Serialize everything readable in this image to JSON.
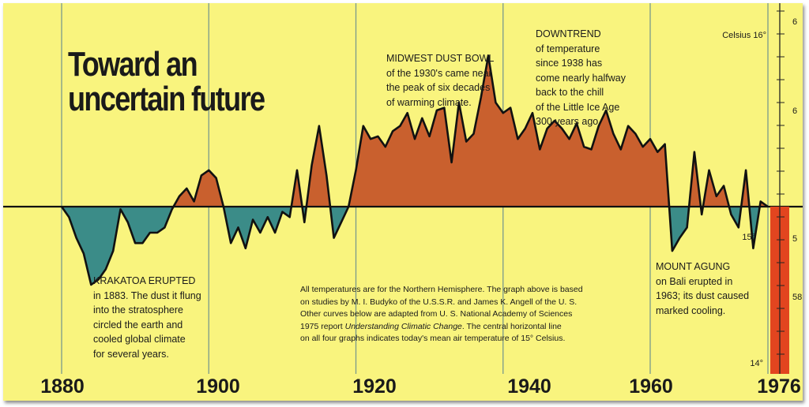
{
  "title": [
    "Toward an",
    "uncertain future"
  ],
  "colors": {
    "background": "#f9f47e",
    "warm_fill": "#c9602e",
    "cool_fill": "#3b8c88",
    "line": "#111111",
    "grid": "#7a9a8c",
    "thermometer": "#e2451f"
  },
  "annotations": {
    "krakatoa": {
      "head": "KRAKATOA ERUPTED",
      "lines": [
        "in 1883. The dust it flung",
        "into the stratosphere",
        "circled the earth and",
        "cooled global climate",
        "for several years."
      ]
    },
    "dustbowl": {
      "head": "MIDWEST DUST BOWL",
      "lines": [
        "of the 1930's came near",
        "the peak of six decades",
        "of warming climate."
      ]
    },
    "downtrend": {
      "head": "DOWNTREND",
      "lines": [
        "of temperature",
        "since 1938 has",
        "come nearly halfway",
        "back to the chill",
        "of the Little Ice Age",
        "300 years ago."
      ]
    },
    "agung": {
      "head": "MOUNT AGUNG",
      "lines": [
        "on Bali erupted in",
        "1963; its dust caused",
        "marked cooling."
      ]
    }
  },
  "caption": {
    "lines": [
      "All temperatures are for the Northern Hemisphere. The graph above is based",
      "on studies by M. I. Budyko of the U.S.S.R. and James K. Angell of the U. S.",
      "Other curves below are adapted from U. S. National Academy of Sciences"
    ],
    "line4_prefix": "1975 report ",
    "line4_italic": "Understanding Climatic Change",
    "line4_suffix": ". The central horizontal line",
    "line5": "on all four graphs indicates today's mean air temperature of 15° Celsius."
  },
  "scale": {
    "celsius_top": "Celsius 16°",
    "celsius_mid": "15°",
    "celsius_bottom": "14°",
    "fahrenheit_labels": [
      "6",
      "6",
      "5",
      "58"
    ]
  },
  "chart_data": {
    "type": "area",
    "baseline_label": "15° Celsius",
    "x_ticks": [
      "1880",
      "1900",
      "1920",
      "1940",
      "1960",
      "1976"
    ],
    "xlim": [
      1880,
      1976
    ],
    "ylim": [
      14,
      16
    ],
    "series": [
      {
        "x": [
          1880,
          1881,
          1882,
          1883,
          1884,
          1885,
          1886,
          1887,
          1888,
          1889,
          1890,
          1891,
          1892,
          1893,
          1894,
          1895,
          1896,
          1897,
          1898,
          1899,
          1900,
          1901,
          1902,
          1903,
          1904,
          1905,
          1906,
          1907,
          1908,
          1909,
          1910,
          1911,
          1912,
          1913,
          1914,
          1915,
          1916,
          1917,
          1918,
          1919,
          1920,
          1921,
          1922,
          1923,
          1924,
          1925,
          1926,
          1927,
          1928,
          1929,
          1930,
          1931,
          1932,
          1933,
          1934,
          1935,
          1936,
          1937,
          1938,
          1939,
          1940,
          1941,
          1942,
          1943,
          1944,
          1945,
          1946,
          1947,
          1948,
          1949,
          1950,
          1951,
          1952,
          1953,
          1954,
          1955,
          1956,
          1957,
          1958,
          1959,
          1960,
          1961,
          1962,
          1963,
          1964,
          1965,
          1966,
          1967,
          1968,
          1969,
          1970,
          1971,
          1972,
          1973,
          1974,
          1975,
          1976
        ],
        "values": [
          15.0,
          14.96,
          14.88,
          14.82,
          14.7,
          14.72,
          14.76,
          14.83,
          14.99,
          14.94,
          14.86,
          14.86,
          14.9,
          14.9,
          14.92,
          14.99,
          15.04,
          15.07,
          15.02,
          15.12,
          15.14,
          15.11,
          15.0,
          14.86,
          14.92,
          14.84,
          14.95,
          14.9,
          14.96,
          14.9,
          14.98,
          14.96,
          15.14,
          14.94,
          15.16,
          15.31,
          15.12,
          14.88,
          14.94,
          15.0,
          15.14,
          15.31,
          15.26,
          15.27,
          15.23,
          15.29,
          15.31,
          15.36,
          15.26,
          15.34,
          15.27,
          15.37,
          15.38,
          15.17,
          15.4,
          15.25,
          15.28,
          15.42,
          15.58,
          15.4,
          15.36,
          15.38,
          15.26,
          15.3,
          15.36,
          15.22,
          15.3,
          15.33,
          15.3,
          15.26,
          15.32,
          15.23,
          15.22,
          15.31,
          15.37,
          15.28,
          15.22,
          15.31,
          15.28,
          15.23,
          15.26,
          15.21,
          15.24,
          14.83,
          14.88,
          14.92,
          15.21,
          14.97,
          15.14,
          15.04,
          15.08,
          14.97,
          14.92,
          15.14,
          14.84,
          15.02,
          15.0
        ]
      }
    ]
  }
}
